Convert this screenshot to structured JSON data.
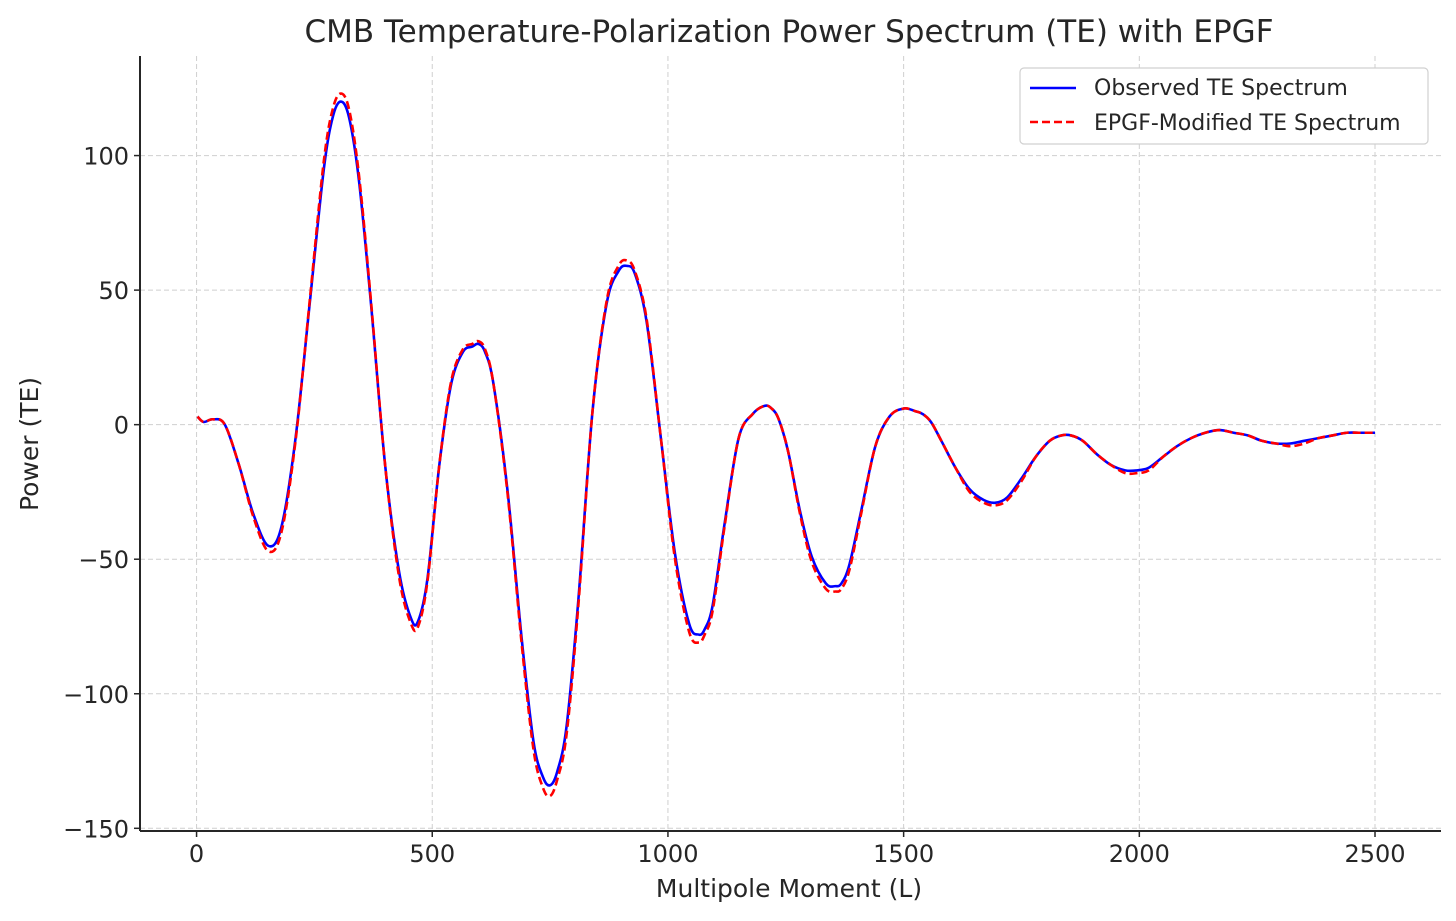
{
  "chart_data": {
    "type": "line",
    "title": "CMB Temperature-Polarization Power Spectrum (TE) with EPGF",
    "xlabel": "Multipole Moment (L)",
    "ylabel": "Power (TE)",
    "xlim": [
      -120,
      2640
    ],
    "ylim": [
      -151,
      137
    ],
    "xticks": [
      0,
      500,
      1000,
      1500,
      2000,
      2500
    ],
    "xtick_labels": [
      "0",
      "500",
      "1000",
      "1500",
      "2000",
      "2500"
    ],
    "yticks": [
      100,
      50,
      0,
      -50,
      -100,
      -150
    ],
    "ytick_labels": [
      "100",
      "50",
      "0",
      "−50",
      "−100",
      "−150"
    ],
    "grid": true,
    "legend_position": "top-right",
    "series": [
      {
        "name": "Observed TE Spectrum",
        "color": "#0000ff",
        "style": "solid",
        "x": [
          2,
          15,
          35,
          60,
          90,
          120,
          152,
          180,
          210,
          240,
          270,
          290,
          308,
          325,
          345,
          370,
          400,
          430,
          455,
          470,
          490,
          515,
          540,
          565,
          585,
          598,
          612,
          630,
          660,
          690,
          715,
          735,
          750,
          765,
          785,
          810,
          840,
          870,
          895,
          913,
          930,
          955,
          985,
          1015,
          1045,
          1065,
          1078,
          1095,
          1120,
          1150,
          1180,
          1205,
          1220,
          1235,
          1255,
          1280,
          1305,
          1335,
          1355,
          1368,
          1385,
          1410,
          1440,
          1470,
          1500,
          1525,
          1540,
          1558,
          1580,
          1610,
          1640,
          1670,
          1695,
          1720,
          1750,
          1780,
          1810,
          1835,
          1855,
          1880,
          1910,
          1940,
          1970,
          1995,
          2020,
          2050,
          2080,
          2110,
          2140,
          2170,
          2200,
          2230,
          2260,
          2290,
          2320,
          2350,
          2380,
          2410,
          2440,
          2470,
          2500
        ],
        "y": [
          3,
          1,
          2,
          0,
          -15,
          -33,
          -45,
          -38,
          -5,
          45,
          95,
          115,
          120,
          113,
          90,
          45,
          -15,
          -55,
          -72,
          -73,
          -57,
          -15,
          15,
          27,
          29,
          30,
          27,
          15,
          -25,
          -80,
          -118,
          -131,
          -134,
          -129,
          -112,
          -65,
          5,
          45,
          57,
          59,
          56,
          38,
          -5,
          -48,
          -74,
          -78,
          -76,
          -67,
          -37,
          -5,
          4,
          7,
          6,
          2,
          -10,
          -32,
          -49,
          -59,
          -60,
          -59,
          -52,
          -32,
          -8,
          3,
          6,
          5,
          4,
          1,
          -6,
          -16,
          -24,
          -28,
          -29,
          -27,
          -20,
          -12,
          -6,
          -4,
          -4,
          -6,
          -11,
          -15,
          -17,
          -17,
          -16,
          -12,
          -8,
          -5,
          -3,
          -2,
          -3,
          -4,
          -6,
          -7,
          -7,
          -6,
          -5,
          -4,
          -3,
          -3,
          -3
        ]
      },
      {
        "name": "EPGF-Modified TE Spectrum",
        "color": "#ff0000",
        "style": "dashed",
        "x": [
          2,
          15,
          35,
          60,
          90,
          120,
          152,
          180,
          210,
          240,
          270,
          290,
          308,
          325,
          345,
          370,
          400,
          430,
          455,
          470,
          490,
          515,
          540,
          565,
          585,
          598,
          612,
          630,
          660,
          690,
          715,
          735,
          750,
          765,
          785,
          810,
          840,
          870,
          895,
          913,
          930,
          955,
          985,
          1015,
          1045,
          1065,
          1078,
          1095,
          1120,
          1150,
          1180,
          1205,
          1220,
          1235,
          1255,
          1280,
          1305,
          1335,
          1355,
          1368,
          1385,
          1410,
          1440,
          1470,
          1500,
          1525,
          1540,
          1558,
          1580,
          1610,
          1640,
          1670,
          1695,
          1720,
          1750,
          1780,
          1810,
          1835,
          1855,
          1880,
          1910,
          1940,
          1970,
          1995,
          2020,
          2050,
          2080,
          2110,
          2140,
          2170,
          2200,
          2230,
          2260,
          2290,
          2320,
          2350,
          2380,
          2410,
          2440,
          2470,
          2500
        ],
        "y": [
          3,
          1,
          2,
          0,
          -15,
          -34,
          -47,
          -40,
          -6,
          46,
          98,
          118,
          123,
          116,
          92,
          46,
          -15,
          -57,
          -74,
          -75,
          -58,
          -15,
          16,
          28,
          30,
          31,
          28,
          15,
          -26,
          -82,
          -121,
          -135,
          -138,
          -132,
          -115,
          -67,
          5,
          46,
          59,
          61,
          57,
          39,
          -5,
          -50,
          -77,
          -81,
          -78,
          -69,
          -38,
          -5,
          4,
          7,
          6,
          2,
          -10,
          -33,
          -51,
          -61,
          -62,
          -61,
          -54,
          -33,
          -8,
          3,
          6,
          5,
          4,
          1,
          -6,
          -16,
          -25,
          -29,
          -30,
          -28,
          -21,
          -12,
          -6,
          -4,
          -4,
          -6,
          -11,
          -15,
          -18,
          -18,
          -17,
          -12,
          -8,
          -5,
          -3,
          -2,
          -3,
          -4,
          -6,
          -7,
          -8,
          -7,
          -5,
          -4,
          -3,
          -3,
          -3
        ]
      }
    ]
  }
}
